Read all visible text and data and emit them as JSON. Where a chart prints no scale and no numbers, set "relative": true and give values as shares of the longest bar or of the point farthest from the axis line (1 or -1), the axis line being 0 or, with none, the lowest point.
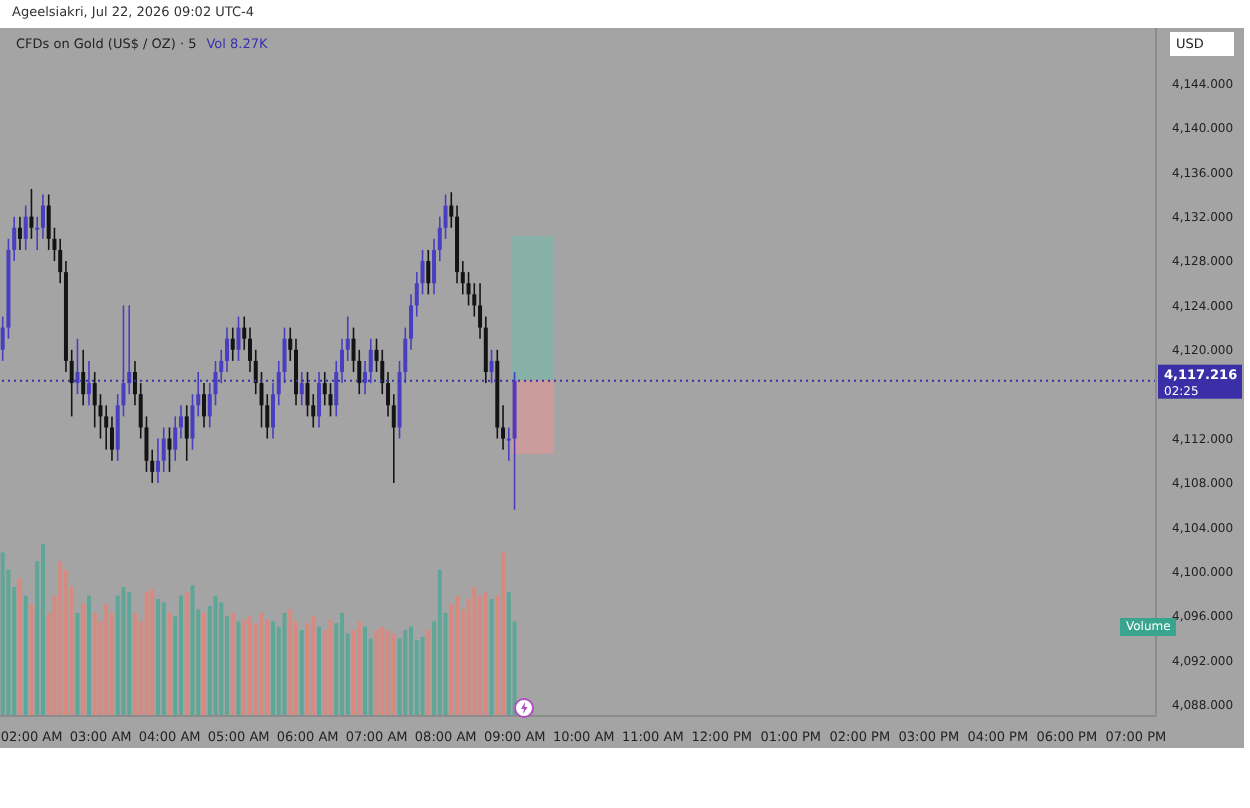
{
  "chart_data": [
    {
      "type": "candlestick",
      "title": "CFDs on Gold (US$ / OZ) · 5",
      "annotations": [
        "Ageelsiakri, Jul 22, 2026 09:02 UTC-4",
        "Vol 8.27K",
        "USD",
        "02:25"
      ],
      "categories": [
        null,
        null,
        null,
        null,
        null,
        "02:00 AM",
        null,
        null,
        null,
        null,
        null,
        null,
        null,
        null,
        null,
        null,
        null,
        "03:00 AM",
        null,
        null,
        null,
        null,
        null,
        null,
        null,
        null,
        null,
        null,
        null,
        "04:00 AM",
        null,
        null,
        null,
        null,
        null,
        null,
        null,
        null,
        null,
        null,
        null,
        "05:00 AM",
        null,
        null,
        null,
        null,
        null,
        null,
        null,
        null,
        null,
        null,
        null,
        "06:00 AM",
        null,
        null,
        null,
        null,
        null,
        null,
        null,
        null,
        null,
        null,
        null,
        "07:00 AM",
        null,
        null,
        null,
        null,
        null,
        null,
        null,
        null,
        null,
        null,
        null,
        "08:00 AM",
        null,
        null,
        null,
        null,
        null,
        null,
        null,
        null,
        null,
        null,
        null,
        "09:00 AM",
        null,
        null,
        null,
        null,
        null,
        null,
        null,
        null,
        null,
        null,
        null,
        "10:00 AM",
        null,
        null,
        null,
        null,
        null,
        null,
        null,
        null,
        null,
        null,
        null,
        "11:00 AM",
        null,
        null,
        null,
        null,
        null,
        null,
        null,
        null,
        null,
        null,
        null,
        "12:00 PM",
        null,
        null,
        null,
        null,
        null,
        null,
        null,
        null,
        null,
        null,
        null,
        "01:00 PM",
        null,
        null,
        null,
        null,
        null,
        null,
        null,
        null,
        null,
        null,
        null,
        "02:00 PM",
        null,
        null,
        null,
        null,
        null,
        null,
        null,
        null,
        null,
        null,
        null,
        "03:00 PM",
        null,
        null,
        null,
        null,
        null,
        null,
        null,
        null,
        null,
        null,
        null,
        "04:00 PM",
        null,
        null,
        null,
        null,
        null,
        null,
        null,
        null,
        null,
        null,
        null,
        "06:00 PM",
        null,
        null,
        null,
        null,
        null,
        null,
        null,
        null,
        null,
        null,
        null,
        "07:00 PM",
        null,
        null,
        null
      ],
      "series": [
        {
          "type": "candlestick",
          "ohlc": [
            [
              4120,
              4123,
              4119,
              4122
            ],
            [
              4122,
              4130,
              4121,
              4129
            ],
            [
              4129,
              4132,
              4128,
              4131
            ],
            [
              4131,
              4132,
              4129,
              4130
            ],
            [
              4130,
              4133,
              4129,
              4132
            ],
            [
              4132,
              4134.5,
              4130,
              4131
            ],
            [
              4131,
              4132,
              4129,
              4131
            ],
            [
              4131,
              4134,
              4130,
              4133
            ],
            [
              4133,
              4134,
              4129,
              4130
            ],
            [
              4130,
              4131,
              4128,
              4129
            ],
            [
              4129,
              4130,
              4126,
              4127
            ],
            [
              4127,
              4128,
              4118,
              4119
            ],
            [
              4119,
              4120,
              4114,
              4117
            ],
            [
              4117,
              4121,
              4116,
              4118
            ],
            [
              4118,
              4120,
              4115,
              4116
            ],
            [
              4116,
              4119,
              4115,
              4117
            ],
            [
              4117,
              4118,
              4113,
              4115
            ],
            [
              4115,
              4116,
              4112,
              4114
            ],
            [
              4114,
              4115,
              4111,
              4113
            ],
            [
              4113,
              4114,
              4110,
              4111
            ],
            [
              4111,
              4116,
              4110,
              4115
            ],
            [
              4115,
              4124,
              4114,
              4117
            ],
            [
              4117,
              4124,
              4116,
              4118
            ],
            [
              4118,
              4119,
              4115,
              4116
            ],
            [
              4116,
              4117,
              4112,
              4113
            ],
            [
              4113,
              4114,
              4109,
              4110
            ],
            [
              4110,
              4111,
              4108,
              4109
            ],
            [
              4109,
              4112,
              4108,
              4110
            ],
            [
              4110,
              4113,
              4109,
              4112
            ],
            [
              4112,
              4113,
              4109,
              4111
            ],
            [
              4111,
              4114,
              4110,
              4113
            ],
            [
              4113,
              4115,
              4112,
              4114
            ],
            [
              4114,
              4115,
              4110,
              4112
            ],
            [
              4112,
              4116,
              4111,
              4115
            ],
            [
              4115,
              4118,
              4114,
              4116
            ],
            [
              4116,
              4117,
              4113,
              4114
            ],
            [
              4114,
              4117,
              4113,
              4116
            ],
            [
              4116,
              4119,
              4115,
              4118
            ],
            [
              4118,
              4120,
              4117,
              4119
            ],
            [
              4119,
              4122,
              4118,
              4121
            ],
            [
              4121,
              4122,
              4119,
              4120
            ],
            [
              4120,
              4123,
              4119,
              4122
            ],
            [
              4122,
              4123,
              4120,
              4121
            ],
            [
              4121,
              4122,
              4118,
              4119
            ],
            [
              4119,
              4120,
              4116,
              4117
            ],
            [
              4117,
              4118,
              4113,
              4115
            ],
            [
              4115,
              4116,
              4112,
              4113
            ],
            [
              4113,
              4117,
              4112,
              4116
            ],
            [
              4116,
              4119,
              4115,
              4118
            ],
            [
              4118,
              4122,
              4117,
              4121
            ],
            [
              4121,
              4122,
              4119,
              4120
            ],
            [
              4120,
              4121,
              4115,
              4116
            ],
            [
              4116,
              4118,
              4115,
              4117
            ],
            [
              4117,
              4118,
              4114,
              4115
            ],
            [
              4115,
              4116,
              4113,
              4114
            ],
            [
              4114,
              4118,
              4113,
              4117
            ],
            [
              4117,
              4118,
              4115,
              4116
            ],
            [
              4116,
              4117,
              4114,
              4115
            ],
            [
              4115,
              4119,
              4114,
              4118
            ],
            [
              4118,
              4121,
              4117,
              4120
            ],
            [
              4120,
              4123,
              4119,
              4121
            ],
            [
              4121,
              4122,
              4118,
              4119
            ],
            [
              4119,
              4120,
              4116,
              4117
            ],
            [
              4117,
              4119,
              4116,
              4118
            ],
            [
              4118,
              4121,
              4117,
              4120
            ],
            [
              4120,
              4121,
              4118,
              4119
            ],
            [
              4119,
              4120,
              4116,
              4117
            ],
            [
              4117,
              4118,
              4114,
              4115
            ],
            [
              4115,
              4116,
              4108,
              4113
            ],
            [
              4113,
              4119,
              4112,
              4118
            ],
            [
              4118,
              4122,
              4117,
              4121
            ],
            [
              4121,
              4125,
              4120,
              4124
            ],
            [
              4124,
              4127,
              4123,
              4126
            ],
            [
              4126,
              4129,
              4125,
              4128
            ],
            [
              4128,
              4129,
              4125,
              4126
            ],
            [
              4126,
              4130,
              4125,
              4129
            ],
            [
              4129,
              4132,
              4128,
              4131
            ],
            [
              4131,
              4134,
              4130,
              4133
            ],
            [
              4133,
              4134.2,
              4131,
              4132
            ],
            [
              4132,
              4133,
              4126,
              4127
            ],
            [
              4127,
              4128,
              4125,
              4126
            ],
            [
              4126,
              4127,
              4124,
              4125
            ],
            [
              4125,
              4126,
              4123,
              4124
            ],
            [
              4124,
              4126,
              4121,
              4122
            ],
            [
              4122,
              4123,
              4117,
              4118
            ],
            [
              4118,
              4120,
              4117,
              4119
            ],
            [
              4119,
              4120,
              4112,
              4113
            ],
            [
              4113,
              4115,
              4111,
              4112
            ],
            [
              4112,
              4113,
              4110,
              4112
            ],
            [
              4112,
              4118,
              4105.6,
              4117.216
            ],
            null,
            null,
            null,
            null,
            null,
            null,
            null,
            null,
            null,
            null,
            null,
            null,
            null,
            null,
            null,
            null,
            null,
            null,
            null,
            null,
            null,
            null,
            null,
            null,
            null,
            null,
            null,
            null,
            null,
            null,
            null,
            null,
            null,
            null,
            null,
            null,
            null,
            null,
            null,
            null,
            null,
            null,
            null,
            null,
            null,
            null,
            null,
            null,
            null,
            null,
            null,
            null,
            null,
            null,
            null,
            null,
            null,
            null,
            null,
            null,
            null,
            null,
            null,
            null,
            null,
            null,
            null,
            null,
            null,
            null,
            null,
            null,
            null,
            null,
            null,
            null,
            null,
            null,
            null,
            null,
            null,
            null,
            null,
            null,
            null,
            null,
            null,
            null,
            null,
            null,
            null,
            null,
            null,
            null,
            null,
            null,
            null,
            null,
            null,
            null,
            null,
            null,
            null,
            null,
            null,
            null,
            null,
            null,
            null,
            null,
            null
          ],
          "colors": [
            "#4a3ec0",
            "#4a3ec0",
            "#4a3ec0",
            "#141414",
            "#4a3ec0",
            "#141414",
            "#4a3ec0",
            "#4a3ec0",
            "#141414",
            "#141414",
            "#141414",
            "#141414",
            "#141414",
            "#4a3ec0",
            "#141414",
            "#4a3ec0",
            "#141414",
            "#141414",
            "#141414",
            "#141414",
            "#4a3ec0",
            "#4a3ec0",
            "#4a3ec0",
            "#141414",
            "#141414",
            "#141414",
            "#141414",
            "#4a3ec0",
            "#4a3ec0",
            "#141414",
            "#4a3ec0",
            "#4a3ec0",
            "#141414",
            "#4a3ec0",
            "#4a3ec0",
            "#141414",
            "#4a3ec0",
            "#4a3ec0",
            "#4a3ec0",
            "#4a3ec0",
            "#141414",
            "#4a3ec0",
            "#141414",
            "#141414",
            "#141414",
            "#141414",
            "#141414",
            "#4a3ec0",
            "#4a3ec0",
            "#4a3ec0",
            "#141414",
            "#141414",
            "#4a3ec0",
            "#141414",
            "#141414",
            "#4a3ec0",
            "#141414",
            "#141414",
            "#4a3ec0",
            "#4a3ec0",
            "#4a3ec0",
            "#141414",
            "#141414",
            "#4a3ec0",
            "#4a3ec0",
            "#141414",
            "#141414",
            "#141414",
            "#141414",
            "#4a3ec0",
            "#4a3ec0",
            "#4a3ec0",
            "#4a3ec0",
            "#4a3ec0",
            "#141414",
            "#4a3ec0",
            "#4a3ec0",
            "#4a3ec0",
            "#141414",
            "#141414",
            "#141414",
            "#141414",
            "#141414",
            "#141414",
            "#141414",
            "#4a3ec0",
            "#141414",
            "#141414",
            "#4a3ec0",
            "#4a3ec0",
            null,
            null,
            null,
            null,
            null,
            null,
            null,
            null,
            null,
            null,
            null,
            null,
            null,
            null,
            null,
            null,
            null,
            null,
            null,
            null,
            null,
            null,
            null,
            null,
            null,
            null,
            null,
            null,
            null,
            null,
            null,
            null,
            null,
            null,
            null,
            null,
            null,
            null,
            null,
            null,
            null,
            null,
            null,
            null,
            null,
            null,
            null,
            null,
            null,
            null,
            null,
            null,
            null,
            null,
            null,
            null,
            null,
            null,
            null,
            null,
            null,
            null,
            null,
            null,
            null,
            null,
            null,
            null,
            null,
            null,
            null,
            null,
            null,
            null,
            null,
            null,
            null,
            null,
            null,
            null,
            null,
            null,
            null,
            null,
            null,
            null,
            null,
            null,
            null,
            null,
            null,
            null,
            null,
            null,
            null,
            null,
            null,
            null,
            null,
            null,
            null,
            null,
            null,
            null,
            null,
            null,
            null,
            null,
            null,
            null,
            null
          ]
        }
      ],
      "ylim": [
        4087,
        4149
      ],
      "yticks": [
        {
          "value": 4088,
          "label": "4,088.000"
        },
        {
          "value": 4092,
          "label": "4,092.000"
        },
        {
          "value": 4096,
          "label": "4,096.000"
        },
        {
          "value": 4100,
          "label": "4,100.000"
        },
        {
          "value": 4104,
          "label": "4,104.000"
        },
        {
          "value": 4108,
          "label": "4,108.000"
        },
        {
          "value": 4112,
          "label": "4,112.000"
        },
        {
          "value": 4120,
          "label": "4,120.000"
        },
        {
          "value": 4124,
          "label": "4,124.000"
        },
        {
          "value": 4128,
          "label": "4,128.000"
        },
        {
          "value": 4132,
          "label": "4,132.000"
        },
        {
          "value": 4136,
          "label": "4,136.000"
        },
        {
          "value": 4140,
          "label": "4,140.000"
        },
        {
          "value": 4144,
          "label": "4,144.000"
        }
      ],
      "ref_lines": [
        {
          "axis": "y",
          "value": 4117.216,
          "label": "4,117.216",
          "color": "#3b2fa8",
          "line_style": "dotted"
        }
      ]
    },
    {
      "type": "bar",
      "relative": true,
      "categories": [
        null,
        null,
        null,
        null,
        null,
        null,
        null,
        null,
        null,
        null,
        null,
        null,
        null,
        null,
        null,
        null,
        null,
        null,
        null,
        null,
        null,
        null,
        null,
        null,
        null,
        null,
        null,
        null,
        null,
        null,
        null,
        null,
        null,
        null,
        null,
        null,
        null,
        null,
        null,
        null,
        null,
        null,
        null,
        null,
        null,
        null,
        null,
        null,
        null,
        null,
        null,
        null,
        null,
        null,
        null,
        null,
        null,
        null,
        null,
        null,
        null,
        null,
        null,
        null,
        null,
        null,
        null,
        null,
        null,
        null,
        null,
        null,
        null,
        null,
        null,
        null,
        null,
        null,
        null,
        null,
        null,
        null,
        null,
        null,
        null,
        null,
        null,
        null,
        null,
        null,
        null,
        null,
        null,
        null,
        null,
        null,
        null,
        null,
        null,
        null,
        null,
        null,
        null,
        null,
        null,
        null,
        null,
        null,
        null,
        null,
        null,
        null,
        null,
        null,
        null,
        null,
        null,
        null,
        null,
        null,
        null,
        null,
        null,
        null,
        null,
        null,
        null,
        null,
        null,
        null,
        null,
        null,
        null,
        null,
        null,
        null,
        null,
        null,
        null,
        null,
        null,
        null,
        null,
        null,
        null,
        null,
        null,
        null,
        null,
        null,
        null,
        null,
        null,
        null,
        null,
        null,
        null,
        null,
        null,
        null,
        null,
        null,
        null,
        null,
        null,
        null,
        null,
        null,
        null,
        null,
        null,
        null,
        null,
        null,
        null,
        null,
        null,
        null,
        null,
        null,
        null,
        null,
        null,
        null,
        null,
        null,
        null,
        null,
        null,
        null,
        null,
        null,
        null,
        null,
        null,
        null,
        null,
        null,
        null,
        null,
        null
      ],
      "series": [
        {
          "name": "Volume",
          "values": [
            0.95,
            0.85,
            0.75,
            0.8,
            0.7,
            0.65,
            0.9,
            1.0,
            0.6,
            0.7,
            0.9,
            0.85,
            0.75,
            0.6,
            0.65,
            0.7,
            0.6,
            0.55,
            0.65,
            0.6,
            0.7,
            0.75,
            0.72,
            0.6,
            0.55,
            0.72,
            0.74,
            0.68,
            0.66,
            0.6,
            0.58,
            0.7,
            0.72,
            0.76,
            0.62,
            0.6,
            0.64,
            0.7,
            0.66,
            0.58,
            0.6,
            0.55,
            0.56,
            0.58,
            0.54,
            0.6,
            0.56,
            0.55,
            0.52,
            0.6,
            0.62,
            0.55,
            0.5,
            0.54,
            0.58,
            0.52,
            0.5,
            0.56,
            0.54,
            0.6,
            0.48,
            0.5,
            0.55,
            0.52,
            0.45,
            0.5,
            0.52,
            0.5,
            0.48,
            0.45,
            0.5,
            0.52,
            0.44,
            0.46,
            0.5,
            0.55,
            0.85,
            0.6,
            0.65,
            0.7,
            0.62,
            0.68,
            0.75,
            0.7,
            0.72,
            0.68,
            0.7,
            0.95,
            0.72,
            0.55,
            null,
            null,
            null,
            null,
            null,
            null,
            null,
            null,
            null,
            null,
            null,
            null,
            null,
            null,
            null,
            null,
            null,
            null,
            null,
            null,
            null,
            null,
            null,
            null,
            null,
            null,
            null,
            null,
            null,
            null,
            null,
            null,
            null,
            null,
            null,
            null,
            null,
            null,
            null,
            null,
            null,
            null,
            null,
            null,
            null,
            null,
            null,
            null,
            null,
            null,
            null,
            null,
            null,
            null,
            null,
            null,
            null,
            null,
            null,
            null,
            null,
            null,
            null,
            null,
            null,
            null,
            null,
            null,
            null,
            null,
            null,
            null,
            null,
            null,
            null,
            null,
            null,
            null,
            null,
            null,
            null,
            null,
            null,
            null,
            null,
            null,
            null,
            null,
            null,
            null,
            null,
            null,
            null,
            null,
            null,
            null,
            null,
            null,
            null,
            null,
            null,
            null,
            null,
            null,
            null,
            null,
            null,
            null,
            null,
            null,
            null
          ],
          "colors": [
            "#5ea697",
            "#5ea697",
            "#5ea697",
            "#d98a80",
            "#5ea697",
            "#d98a80",
            "#5ea697",
            "#5ea697",
            "#d98a80",
            "#d98a80",
            "#d98a80",
            "#d98a80",
            "#d98a80",
            "#5ea697",
            "#d98a80",
            "#5ea697",
            "#d98a80",
            "#d98a80",
            "#d98a80",
            "#d98a80",
            "#5ea697",
            "#5ea697",
            "#5ea697",
            "#d98a80",
            "#d98a80",
            "#d98a80",
            "#d98a80",
            "#5ea697",
            "#5ea697",
            "#d98a80",
            "#5ea697",
            "#5ea697",
            "#d98a80",
            "#5ea697",
            "#5ea697",
            "#d98a80",
            "#5ea697",
            "#5ea697",
            "#5ea697",
            "#5ea697",
            "#d98a80",
            "#5ea697",
            "#d98a80",
            "#d98a80",
            "#d98a80",
            "#d98a80",
            "#d98a80",
            "#5ea697",
            "#5ea697",
            "#5ea697",
            "#d98a80",
            "#d98a80",
            "#5ea697",
            "#d98a80",
            "#d98a80",
            "#5ea697",
            "#d98a80",
            "#d98a80",
            "#5ea697",
            "#5ea697",
            "#5ea697",
            "#d98a80",
            "#d98a80",
            "#5ea697",
            "#5ea697",
            "#d98a80",
            "#d98a80",
            "#d98a80",
            "#d98a80",
            "#5ea697",
            "#5ea697",
            "#5ea697",
            "#5ea697",
            "#5ea697",
            "#d98a80",
            "#5ea697",
            "#5ea697",
            "#5ea697",
            "#d98a80",
            "#d98a80",
            "#d98a80",
            "#d98a80",
            "#d98a80",
            "#d98a80",
            "#d98a80",
            "#5ea697",
            "#d98a80",
            "#d98a80",
            "#5ea697",
            "#5ea697",
            null,
            null,
            null,
            null,
            null,
            null,
            null,
            null,
            null,
            null,
            null,
            null,
            null,
            null,
            null,
            null,
            null,
            null,
            null,
            null,
            null,
            null,
            null,
            null,
            null,
            null,
            null,
            null,
            null,
            null,
            null,
            null,
            null,
            null,
            null,
            null,
            null,
            null,
            null,
            null,
            null,
            null,
            null,
            null,
            null,
            null,
            null,
            null,
            null,
            null,
            null,
            null,
            null,
            null,
            null,
            null,
            null,
            null,
            null,
            null,
            null,
            null,
            null,
            null,
            null,
            null,
            null,
            null,
            null,
            null,
            null,
            null,
            null,
            null,
            null,
            null,
            null,
            null,
            null,
            null,
            null,
            null,
            null,
            null,
            null,
            null,
            null,
            null,
            null,
            null,
            null,
            null,
            null,
            null,
            null,
            null,
            null,
            null,
            null,
            null,
            null,
            null,
            null,
            null,
            null,
            null,
            null,
            null,
            null,
            null,
            null
          ]
        }
      ]
    }
  ]
}
